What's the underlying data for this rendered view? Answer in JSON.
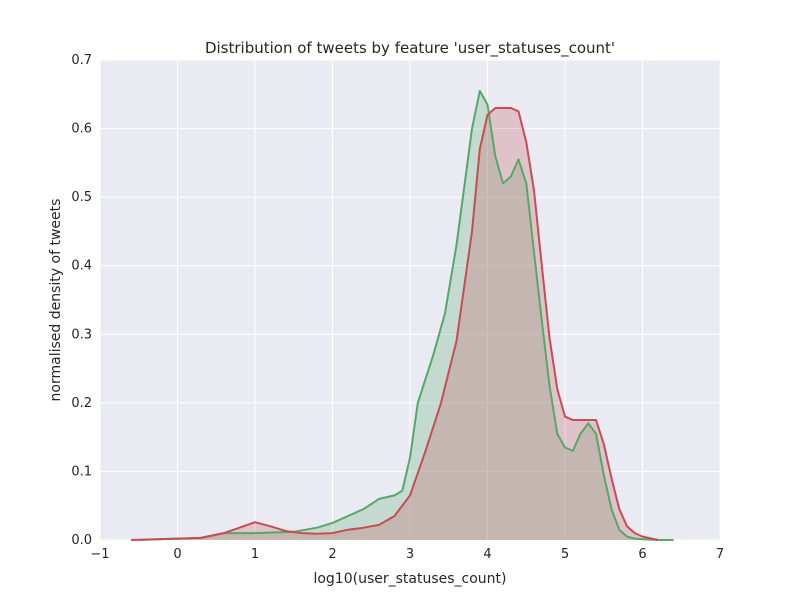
{
  "chart_data": {
    "type": "area",
    "title": "Distribution of tweets by feature 'user_statuses_count'",
    "xlabel": "log10(user_statuses_count)",
    "ylabel": "normalised density of tweets",
    "xlim": [
      -1,
      7
    ],
    "ylim": [
      0,
      0.7
    ],
    "x_ticks": [
      -1,
      0,
      1,
      2,
      3,
      4,
      5,
      6,
      7
    ],
    "y_ticks": [
      0.0,
      0.1,
      0.2,
      0.3,
      0.4,
      0.5,
      0.6,
      0.7
    ],
    "x_tick_labels": [
      "−1",
      "0",
      "1",
      "2",
      "3",
      "4",
      "5",
      "6",
      "7"
    ],
    "y_tick_labels": [
      "0.0",
      "0.1",
      "0.2",
      "0.3",
      "0.4",
      "0.5",
      "0.6",
      "0.7"
    ],
    "grid": true,
    "background": "#EAEAF2",
    "series": [
      {
        "color": "#55A868",
        "x": [
          -0.5,
          0.0,
          0.3,
          0.6,
          1.0,
          1.5,
          1.8,
          2.0,
          2.2,
          2.4,
          2.6,
          2.8,
          2.9,
          3.0,
          3.1,
          3.2,
          3.3,
          3.45,
          3.6,
          3.8,
          3.9,
          4.0,
          4.1,
          4.2,
          4.3,
          4.4,
          4.5,
          4.6,
          4.7,
          4.8,
          4.9,
          5.0,
          5.1,
          5.2,
          5.3,
          5.4,
          5.5,
          5.6,
          5.7,
          5.8,
          5.9,
          6.0,
          6.2,
          6.4
        ],
        "y": [
          0.0,
          0.002,
          0.003,
          0.01,
          0.01,
          0.012,
          0.018,
          0.025,
          0.035,
          0.045,
          0.06,
          0.065,
          0.072,
          0.12,
          0.2,
          0.235,
          0.27,
          0.33,
          0.43,
          0.6,
          0.655,
          0.635,
          0.56,
          0.52,
          0.53,
          0.555,
          0.52,
          0.42,
          0.32,
          0.225,
          0.155,
          0.135,
          0.13,
          0.155,
          0.17,
          0.155,
          0.095,
          0.045,
          0.015,
          0.005,
          0.002,
          0.001,
          0.0,
          0.0
        ]
      },
      {
        "color": "#C44E52",
        "x": [
          -0.6,
          0.0,
          0.3,
          0.6,
          0.8,
          1.0,
          1.2,
          1.4,
          1.6,
          1.8,
          2.0,
          2.2,
          2.4,
          2.6,
          2.8,
          3.0,
          3.2,
          3.4,
          3.6,
          3.8,
          3.9,
          4.0,
          4.1,
          4.2,
          4.3,
          4.4,
          4.5,
          4.6,
          4.7,
          4.8,
          4.9,
          5.0,
          5.1,
          5.2,
          5.3,
          5.4,
          5.5,
          5.6,
          5.7,
          5.8,
          5.9,
          6.0,
          6.2
        ],
        "y": [
          0.0,
          0.002,
          0.003,
          0.01,
          0.018,
          0.026,
          0.02,
          0.013,
          0.01,
          0.009,
          0.01,
          0.015,
          0.018,
          0.022,
          0.035,
          0.065,
          0.13,
          0.2,
          0.29,
          0.45,
          0.57,
          0.62,
          0.63,
          0.63,
          0.63,
          0.625,
          0.58,
          0.51,
          0.4,
          0.295,
          0.22,
          0.18,
          0.175,
          0.175,
          0.175,
          0.175,
          0.14,
          0.09,
          0.045,
          0.02,
          0.01,
          0.005,
          0.0
        ]
      }
    ]
  }
}
